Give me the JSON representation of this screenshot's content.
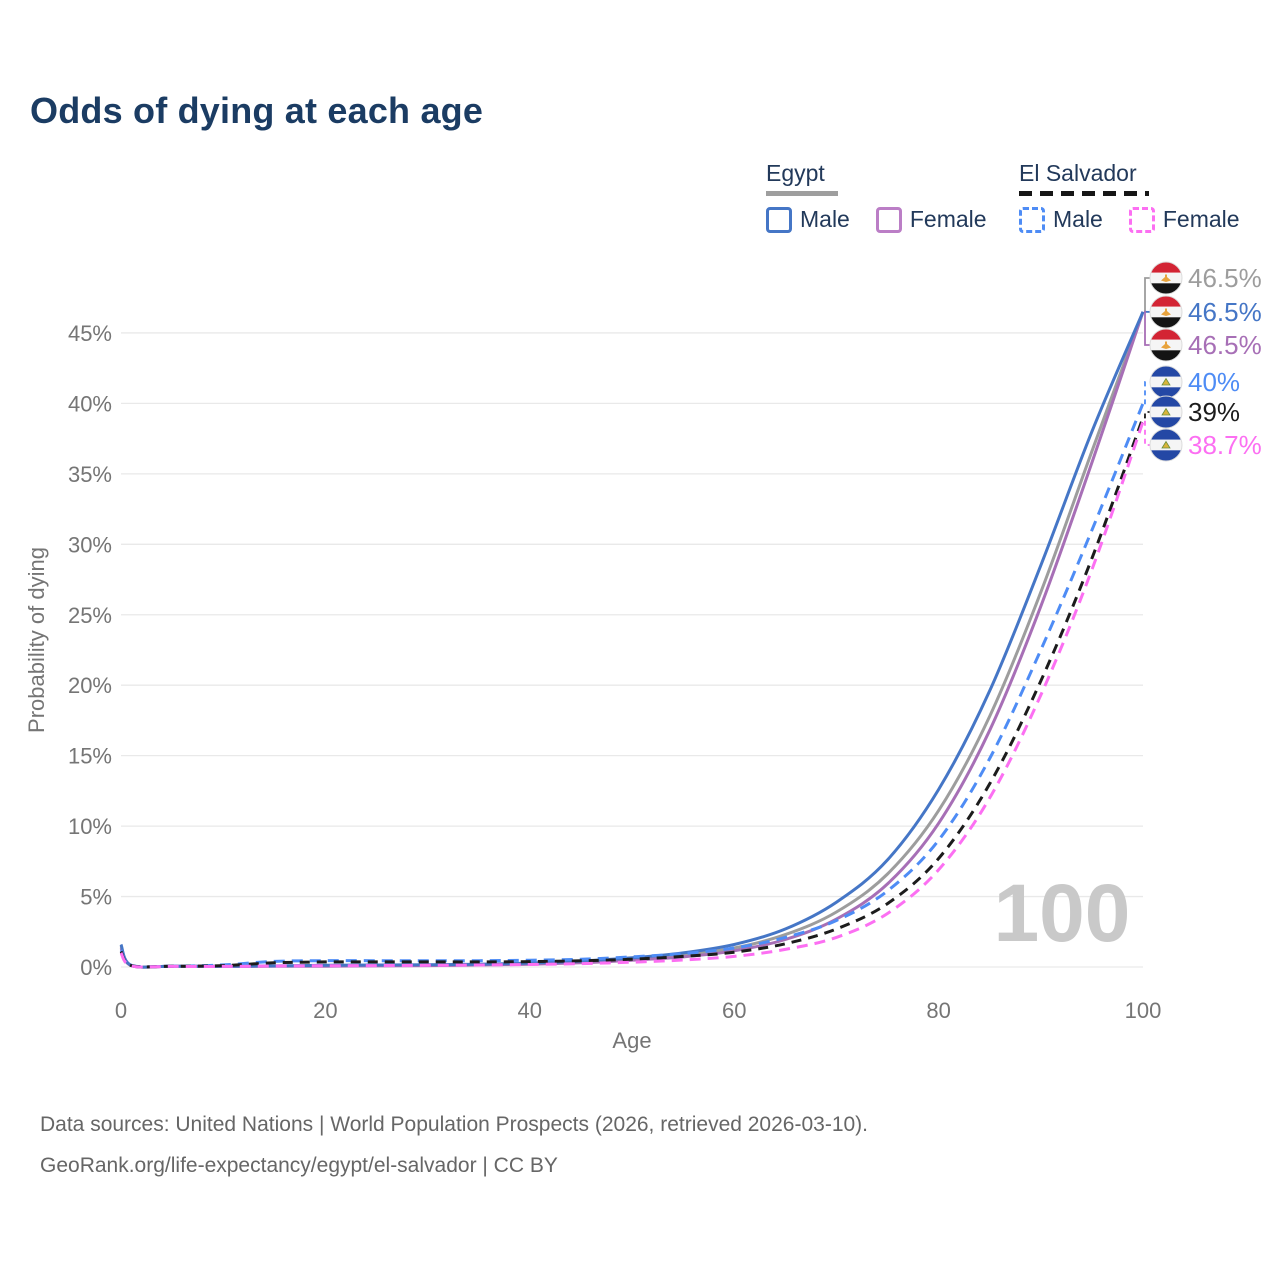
{
  "title": "Odds of dying at each age",
  "legend": {
    "groups": [
      {
        "label": "Egypt",
        "line_style": "solid",
        "underline_color": "#9e9e9e",
        "items": [
          {
            "label": "Male",
            "color": "#4576c6",
            "dashed": false
          },
          {
            "label": "Female",
            "color": "#bb7ec6",
            "dashed": false
          }
        ]
      },
      {
        "label": "El Salvador",
        "line_style": "dashed",
        "underline_color": "#161616",
        "items": [
          {
            "label": "Male",
            "color": "#4e8cf5",
            "dashed": true
          },
          {
            "label": "Female",
            "color": "#fc6ff2",
            "dashed": true
          }
        ]
      }
    ]
  },
  "footer": {
    "line1": "Data sources: United Nations | World Population Prospects (2026, retrieved 2026-03-10).",
    "line2": "GeoRank.org/life-expectancy/egypt/el-salvador | CC BY"
  },
  "chart_data": {
    "type": "line",
    "title": "Odds of dying at each age",
    "xlabel": "Age",
    "ylabel": "Probability of dying",
    "xlim": [
      0,
      100
    ],
    "ylim_percent": [
      0,
      47
    ],
    "x_ticks": [
      0,
      20,
      40,
      60,
      80,
      100
    ],
    "y_ticks_percent": [
      0,
      5,
      10,
      15,
      20,
      25,
      30,
      35,
      40,
      45
    ],
    "grid": "horizontal-only",
    "legend_position": "top-right",
    "age_marker": "100",
    "ages": [
      0,
      1,
      5,
      10,
      15,
      20,
      25,
      30,
      35,
      40,
      45,
      50,
      55,
      60,
      65,
      70,
      75,
      80,
      85,
      90,
      95,
      100
    ],
    "series": [
      {
        "id": "egypt-both",
        "name": "Egypt",
        "country": "Egypt",
        "sex": "both",
        "color": "#9d9d9d",
        "dash": "solid",
        "flag": "egypt",
        "end_label": "46.5%",
        "label_slot": 0,
        "values_percent": [
          1.5,
          0.11,
          0.055,
          0.045,
          0.07,
          0.09,
          0.11,
          0.13,
          0.17,
          0.24,
          0.36,
          0.56,
          0.85,
          1.35,
          2.3,
          3.9,
          6.6,
          11.1,
          17.8,
          26.6,
          36.6,
          46.5
        ]
      },
      {
        "id": "egypt-male",
        "name": "Egypt Male",
        "country": "Egypt",
        "sex": "male",
        "color": "#4576c6",
        "dash": "solid",
        "flag": "egypt",
        "end_label": "46.5%",
        "label_slot": 1,
        "values_percent": [
          1.6,
          0.12,
          0.06,
          0.05,
          0.08,
          0.12,
          0.14,
          0.16,
          0.2,
          0.28,
          0.42,
          0.65,
          1.0,
          1.6,
          2.7,
          4.6,
          7.6,
          12.6,
          19.6,
          28.5,
          38.0,
          46.5
        ]
      },
      {
        "id": "egypt-female",
        "name": "Egypt Female",
        "country": "Egypt",
        "sex": "female",
        "color": "#a76fb6",
        "dash": "solid",
        "flag": "egypt",
        "end_label": "46.5%",
        "label_slot": 2,
        "values_percent": [
          1.35,
          0.1,
          0.05,
          0.04,
          0.05,
          0.06,
          0.08,
          0.1,
          0.14,
          0.2,
          0.3,
          0.48,
          0.72,
          1.15,
          1.95,
          3.4,
          5.9,
          10.2,
          16.8,
          25.6,
          35.8,
          46.5
        ]
      },
      {
        "id": "el-salvador-male",
        "name": "El Salvador Male",
        "country": "El Salvador",
        "sex": "male",
        "color": "#4e8cf5",
        "dash": "dashed",
        "flag": "el-salvador",
        "end_label": "40%",
        "label_slot": 3,
        "values_percent": [
          1.2,
          0.12,
          0.06,
          0.15,
          0.4,
          0.45,
          0.45,
          0.45,
          0.45,
          0.48,
          0.55,
          0.72,
          0.95,
          1.35,
          2.1,
          3.3,
          5.4,
          9.0,
          14.8,
          22.5,
          31.0,
          40.0
        ]
      },
      {
        "id": "el-salvador-both",
        "name": "El Salvador",
        "country": "El Salvador",
        "sex": "both",
        "color": "#1c1c1c",
        "dash": "dashed",
        "flag": "el-salvador",
        "end_label": "39%",
        "label_slot": 4,
        "values_percent": [
          1.1,
          0.1,
          0.05,
          0.1,
          0.3,
          0.36,
          0.36,
          0.36,
          0.36,
          0.38,
          0.44,
          0.55,
          0.75,
          1.05,
          1.65,
          2.7,
          4.5,
          7.7,
          13.0,
          20.3,
          29.0,
          39.0
        ]
      },
      {
        "id": "el-salvador-female",
        "name": "El Salvador Female",
        "country": "El Salvador",
        "sex": "female",
        "color": "#fc6ff2",
        "dash": "dashed",
        "flag": "el-salvador",
        "end_label": "38.7%",
        "label_slot": 5,
        "values_percent": [
          1.0,
          0.08,
          0.04,
          0.04,
          0.07,
          0.09,
          0.1,
          0.12,
          0.14,
          0.18,
          0.24,
          0.34,
          0.5,
          0.75,
          1.25,
          2.1,
          3.8,
          6.9,
          12.0,
          19.3,
          28.2,
          38.7
        ]
      }
    ]
  }
}
